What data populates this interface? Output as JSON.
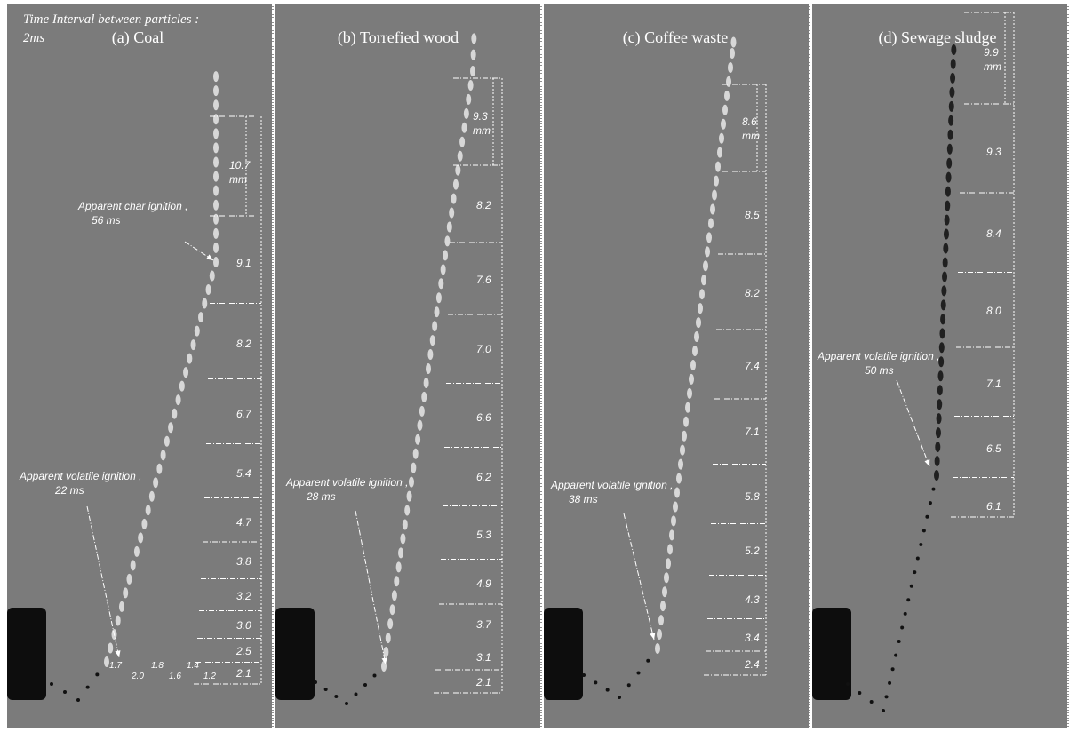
{
  "header": {
    "line1": "Time Interval between particles  :",
    "line2": "2ms"
  },
  "panels": [
    {
      "title": "(a) Coal",
      "scale": {
        "value": "10.7",
        "unit": "mm"
      },
      "spacings": [
        "9.1",
        "8.2",
        "6.7",
        "5.4",
        "4.7",
        "3.8",
        "3.2",
        "3.0",
        "2.5",
        "2.1"
      ],
      "bottom_spacings": [
        "1.7",
        "2.0",
        "1.8",
        "1.6",
        "1.4",
        "1.2"
      ],
      "annotations": [
        {
          "lines": [
            "Apparent  char ignition ,",
            "56 ms"
          ]
        },
        {
          "lines": [
            "Apparent volatile ignition ,",
            "22 ms"
          ]
        }
      ]
    },
    {
      "title": "(b) Torrefied wood",
      "scale": {
        "value": "9.3",
        "unit": "mm"
      },
      "spacings": [
        "8.2",
        "7.6",
        "7.0",
        "6.6",
        "6.2",
        "5.3",
        "4.9",
        "3.7",
        "3.1",
        "2.1"
      ],
      "annotations": [
        {
          "lines": [
            "Apparent  volatile ignition ,",
            "28 ms"
          ]
        }
      ]
    },
    {
      "title": "(c) Coffee waste",
      "scale": {
        "value": "8.6",
        "unit": "mm"
      },
      "spacings": [
        "8.5",
        "8.2",
        "7.4",
        "7.1",
        "5.8",
        "5.2",
        "4.3",
        "3.4",
        "2.4"
      ],
      "annotations": [
        {
          "lines": [
            "Apparent  volatile ignition ,",
            "38 ms"
          ]
        }
      ]
    },
    {
      "title": "(d) Sewage sludge",
      "scale": {
        "value": "9.9",
        "unit": "mm"
      },
      "spacings": [
        "9.3",
        "8.4",
        "8.0",
        "7.1",
        "6.5",
        "6.1"
      ],
      "annotations": [
        {
          "lines": [
            "Apparent volatile ignition ,",
            "50 ms"
          ]
        }
      ]
    }
  ]
}
